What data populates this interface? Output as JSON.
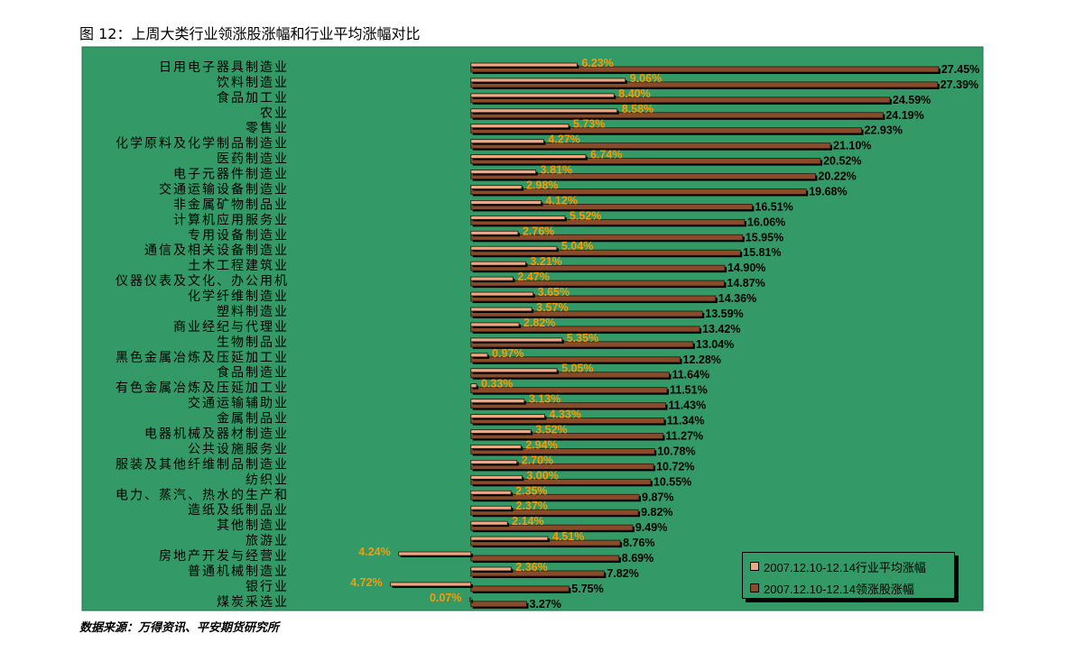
{
  "title": "图 12：上周大类行业领涨股涨幅和行业平均涨幅对比",
  "source": "数据来源：万得资讯、平安期货研究所",
  "chart_data": {
    "type": "bar",
    "orientation": "horizontal",
    "categories": [
      "日用电子器具制造业",
      "饮料制造业",
      "食品加工业",
      "农业",
      "零售业",
      "化学原料及化学制品制造业",
      "医药制造业",
      "电子元器件制造业",
      "交通运输设备制造业",
      "非金属矿物制品业",
      "计算机应用服务业",
      "专用设备制造业",
      "通信及相关设备制造业",
      "土木工程建筑业",
      "仪器仪表及文化、办公用机",
      "化学纤维制造业",
      "塑料制造业",
      "商业经纪与代理业",
      "生物制品业",
      "黑色金属冶炼及压延加工业",
      "食品制造业",
      "有色金属冶炼及压延加工业",
      "交通运输辅助业",
      "金属制品业",
      "电器机械及器材制造业",
      "公共设施服务业",
      "服装及其他纤维制品制造业",
      "纺织业",
      "电力、蒸汽、热水的生产和",
      "造纸及纸制品业",
      "其他制造业",
      "旅游业",
      "房地产开发与经营业",
      "普通机械制造业",
      "银行业",
      "煤炭采选业"
    ],
    "series": [
      {
        "name": "2007.12.10-12.14行业平均涨幅",
        "values": [
          6.23,
          9.06,
          8.4,
          8.58,
          5.73,
          4.27,
          6.74,
          3.81,
          2.98,
          4.12,
          5.52,
          2.76,
          5.04,
          3.21,
          2.47,
          3.65,
          3.57,
          2.82,
          5.35,
          0.97,
          5.05,
          0.33,
          3.13,
          4.33,
          3.52,
          2.94,
          2.7,
          3.0,
          2.35,
          2.37,
          2.14,
          4.51,
          -4.24,
          2.36,
          -4.72,
          -0.07
        ],
        "color": "#f0a884",
        "label_color": "#ff9900"
      },
      {
        "name": "2007.12.10-12.14领涨股涨幅",
        "values": [
          27.45,
          27.39,
          24.59,
          24.19,
          22.93,
          21.1,
          20.52,
          20.22,
          19.68,
          16.51,
          16.06,
          15.95,
          15.81,
          14.9,
          14.87,
          14.36,
          13.59,
          13.42,
          13.04,
          12.28,
          11.64,
          11.51,
          11.43,
          11.34,
          11.27,
          10.78,
          10.72,
          10.55,
          9.87,
          9.82,
          9.49,
          8.76,
          8.69,
          7.82,
          5.75,
          3.27
        ],
        "color": "#8a4b2a",
        "label_color": "#000000"
      }
    ],
    "value_suffix": "%",
    "xlim": [
      -10,
      30
    ],
    "grid": false,
    "legend": "bottom-right",
    "background_color": "#339966"
  }
}
